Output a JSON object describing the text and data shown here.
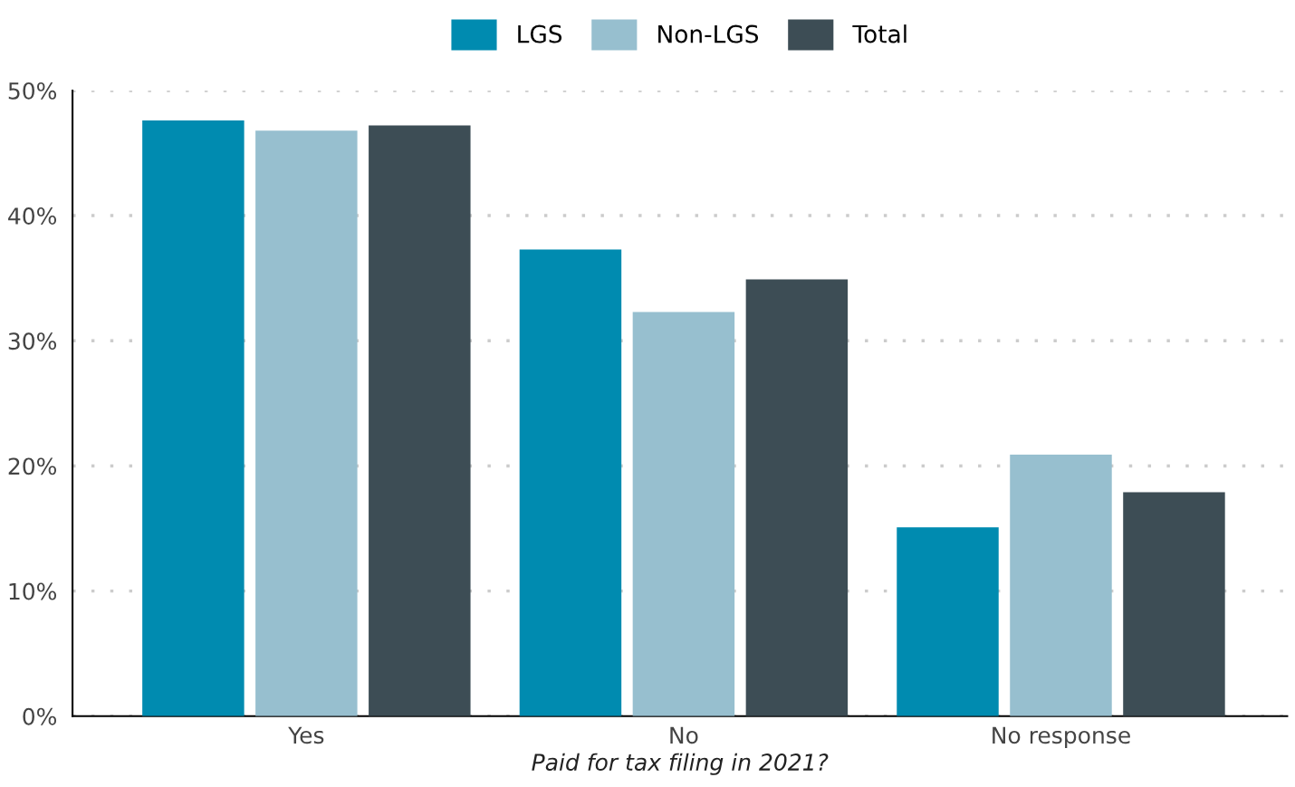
{
  "chart_data": {
    "type": "bar",
    "xlabel": "Paid for tax filing in 2021?",
    "categories": [
      "Yes",
      "No",
      "No response"
    ],
    "series": [
      {
        "name": "LGS",
        "color": "#008bb0",
        "values": [
          47.6,
          37.3,
          15.1
        ]
      },
      {
        "name": "Non-LGS",
        "color": "#97bfcf",
        "values": [
          46.8,
          32.3,
          20.9
        ]
      },
      {
        "name": "Total",
        "color": "#3d4d55",
        "values": [
          47.2,
          34.9,
          17.9
        ]
      }
    ],
    "ylim": [
      0,
      50
    ],
    "yticks": [
      {
        "value": 0,
        "label": "0%"
      },
      {
        "value": 10,
        "label": "10%"
      },
      {
        "value": 20,
        "label": "20%"
      },
      {
        "value": 30,
        "label": "30%"
      },
      {
        "value": 40,
        "label": "40%"
      },
      {
        "value": 50,
        "label": "50%"
      }
    ],
    "grid": "y",
    "legend": "top"
  }
}
